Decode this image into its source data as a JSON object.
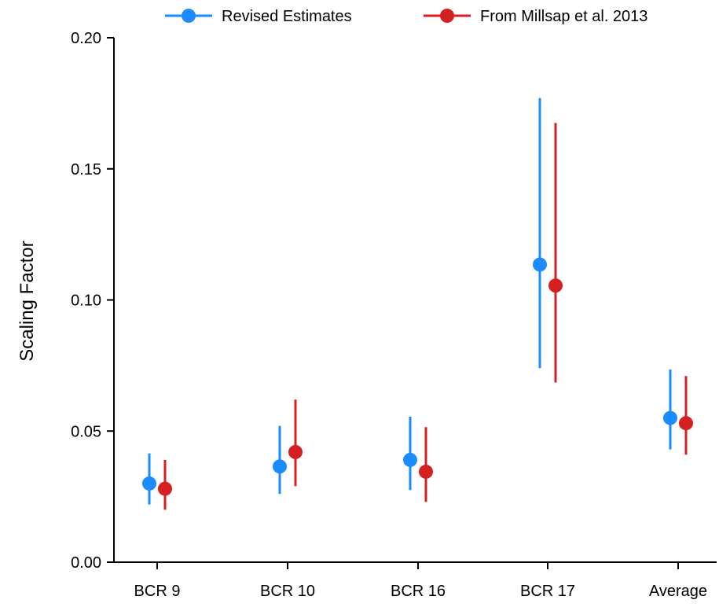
{
  "chart_data": {
    "type": "scatter",
    "title": "",
    "xlabel": "",
    "ylabel": "Scaling Factor",
    "ylim": [
      0,
      0.2
    ],
    "yticks": [
      "0.00",
      "0.05",
      "0.10",
      "0.15",
      "0.20"
    ],
    "categories": [
      "BCR 9",
      "BCR 10",
      "BCR 16",
      "BCR 17",
      "Average"
    ],
    "legend_position": "top",
    "series": [
      {
        "name": "Revised Estimates",
        "color": "#1A8CFF",
        "values": [
          0.03,
          0.0365,
          0.039,
          0.1135,
          0.055
        ],
        "lower": [
          0.022,
          0.026,
          0.0275,
          0.074,
          0.043
        ],
        "upper": [
          0.0415,
          0.052,
          0.0555,
          0.177,
          0.0735
        ]
      },
      {
        "name": "From Millsap et al. 2013",
        "color": "#D42020",
        "values": [
          0.028,
          0.042,
          0.0345,
          0.1055,
          0.053
        ],
        "lower": [
          0.02,
          0.029,
          0.023,
          0.0685,
          0.041
        ],
        "upper": [
          0.039,
          0.062,
          0.0515,
          0.1675,
          0.071
        ]
      }
    ]
  }
}
